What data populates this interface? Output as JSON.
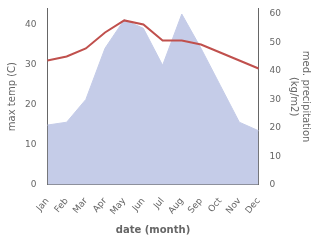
{
  "chart_data": {
    "type": "line",
    "categories": [
      "Jan",
      "Feb",
      "Mar",
      "Apr",
      "May",
      "Jun",
      "Jul",
      "Aug",
      "Sep",
      "Oct",
      "Nov",
      "Dec"
    ],
    "series": [
      {
        "type": "line",
        "color": "#c0504d",
        "values": [
          31,
          32,
          34,
          38,
          41,
          40,
          36,
          36,
          35,
          33,
          31,
          29
        ]
      },
      {
        "type": "area",
        "color": "#c5cce8",
        "axis": "y2",
        "values": [
          21,
          22,
          30,
          48,
          58,
          55,
          42,
          60,
          48,
          35,
          22,
          19
        ]
      }
    ],
    "xlabel": "date (month)",
    "ylabel": "max temp (C)",
    "y2label": "med. precipitation\n(kg/m2)",
    "ylim": [
      0,
      44
    ],
    "yticks": [
      0,
      10,
      20,
      30,
      40
    ],
    "y2lim": [
      0,
      62
    ],
    "y2ticks": [
      0,
      10,
      20,
      30,
      40,
      50,
      60
    ],
    "grid": false
  }
}
